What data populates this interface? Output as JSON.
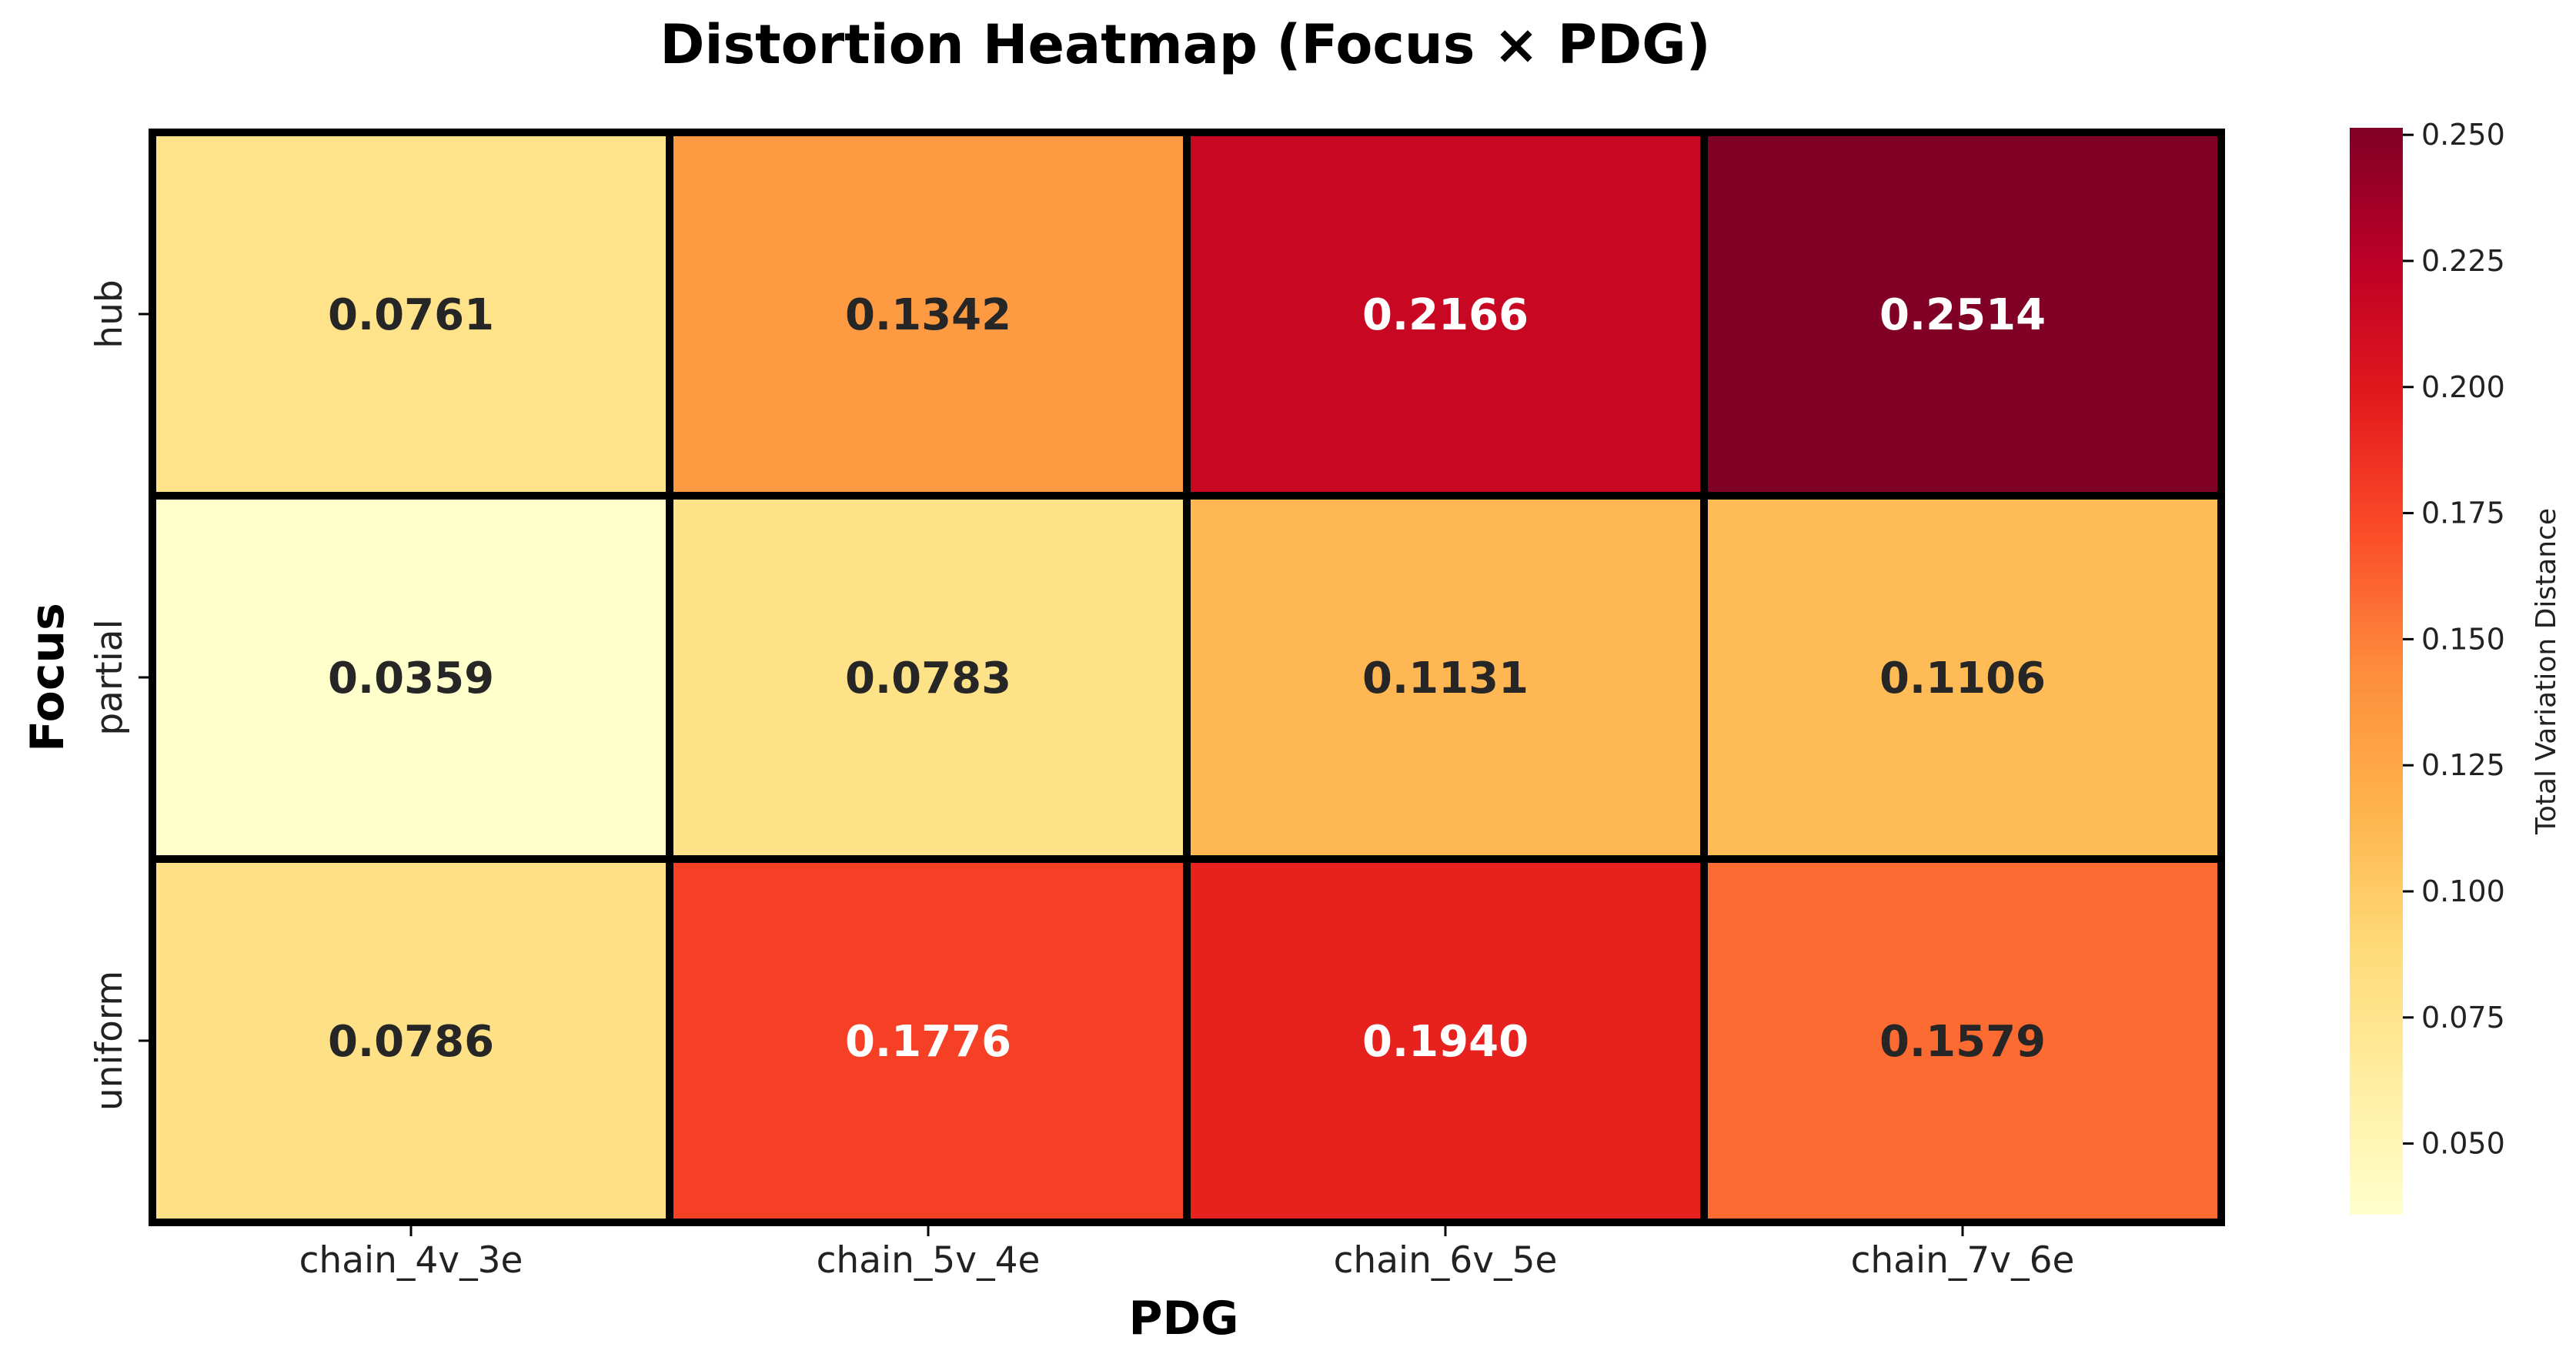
{
  "chart_data": {
    "type": "heatmap",
    "title": "Distortion Heatmap (Focus × PDG)",
    "xlabel": "PDG",
    "ylabel": "Focus",
    "x_categories": [
      "chain_4v_3e",
      "chain_5v_4e",
      "chain_6v_5e",
      "chain_7v_6e"
    ],
    "y_categories": [
      "hub",
      "partial",
      "uniform"
    ],
    "values": [
      [
        0.0761,
        0.1342,
        0.2166,
        0.2514
      ],
      [
        0.0359,
        0.0783,
        0.1131,
        0.1106
      ],
      [
        0.0786,
        0.1776,
        0.194,
        0.1579
      ]
    ],
    "value_labels": [
      [
        "0.0761",
        "0.1342",
        "0.2166",
        "0.2514"
      ],
      [
        "0.0359",
        "0.0783",
        "0.1131",
        "0.1106"
      ],
      [
        "0.0786",
        "0.1776",
        "0.1940",
        "0.1579"
      ]
    ],
    "colormap": "YlOrRd",
    "vmin": 0.0359,
    "vmax": 0.2514,
    "colorbar": {
      "label": "Total Variation Distance",
      "ticks": [
        0.05,
        0.075,
        0.1,
        0.125,
        0.15,
        0.175,
        0.2,
        0.225,
        0.25
      ],
      "tick_labels": [
        "0.050",
        "0.075",
        "0.100",
        "0.125",
        "0.150",
        "0.175",
        "0.200",
        "0.225",
        "0.250"
      ]
    },
    "grid": false,
    "cell_border_color": "#000000",
    "text_colors": {
      "dark": "#262626",
      "light": "#ffffff"
    }
  }
}
